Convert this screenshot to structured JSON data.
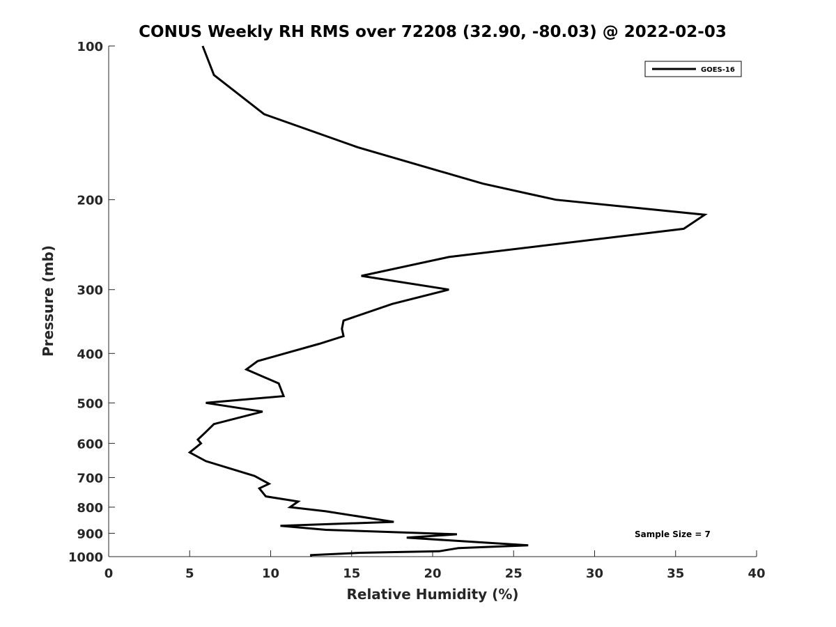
{
  "chart_data": {
    "type": "line",
    "title": "CONUS Weekly RH RMS over 72208 (32.90, -80.03) @ 2022-02-03",
    "xlabel": "Relative Humidity (%)",
    "ylabel": "Pressure (mb)",
    "xlim": [
      0,
      40
    ],
    "ylim": [
      1000,
      100
    ],
    "yscale": "log",
    "y_reversed": true,
    "grid": false,
    "legend_position": "top-right",
    "x_ticks": [
      "0",
      "5",
      "10",
      "15",
      "20",
      "25",
      "30",
      "35",
      "40"
    ],
    "y_ticks": [
      "100",
      "200",
      "300",
      "400",
      "500",
      "600",
      "700",
      "800",
      "900",
      "1000"
    ],
    "annotation": "Sample Size = 7",
    "series": [
      {
        "name": "GOES-16",
        "color": "#000000",
        "x": [
          5.8,
          6.5,
          9.6,
          15.4,
          23.1,
          27.6,
          36.8,
          35.5,
          21.0,
          15.6,
          21.0,
          17.5,
          14.5,
          14.4,
          14.5,
          13.0,
          9.2,
          8.5,
          10.5,
          10.8,
          6.0,
          9.5,
          6.5,
          6.0,
          5.5,
          5.7,
          5.0,
          6.0,
          9.0,
          9.9,
          9.3,
          9.7,
          11.7,
          11.2,
          13.4,
          17.6,
          10.6,
          13.4,
          21.5,
          18.4,
          25.9,
          21.6,
          20.4,
          15.5,
          12.5,
          12.5
        ],
        "y": [
          100,
          114,
          136,
          158,
          186,
          200,
          214,
          228,
          259,
          282,
          300,
          320,
          345,
          358,
          370,
          383,
          414,
          430,
          458,
          485,
          500,
          520,
          550,
          570,
          590,
          600,
          625,
          650,
          695,
          720,
          735,
          762,
          780,
          800,
          815,
          855,
          870,
          886,
          904,
          918,
          950,
          962,
          976,
          983,
          993,
          1000
        ]
      }
    ]
  }
}
